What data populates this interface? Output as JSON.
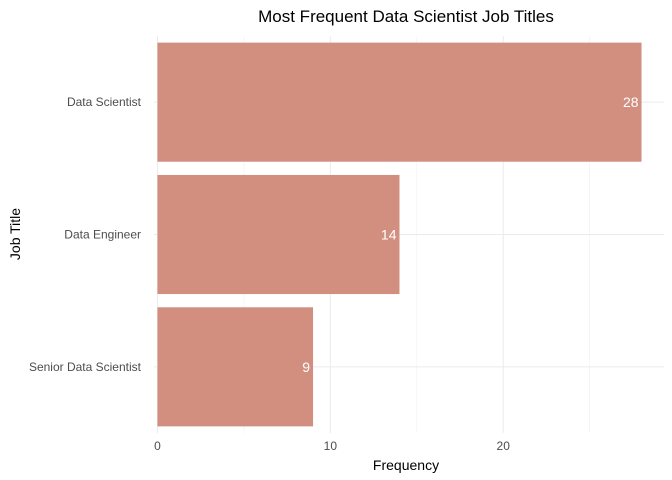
{
  "chart_data": {
    "type": "bar",
    "orientation": "horizontal",
    "title": "Most Frequent Data Scientist Job Titles",
    "xlabel": "Frequency",
    "ylabel": "Job Title",
    "categories": [
      "Data Scientist",
      "Data Engineer",
      "Senior Data Scientist"
    ],
    "values": [
      28,
      14,
      9
    ],
    "data_labels": [
      "28",
      "14",
      "9"
    ],
    "x_ticks": [
      0,
      10,
      20
    ],
    "x_tick_labels": [
      "0",
      "10",
      "20"
    ],
    "xlim": [
      -0.2,
      29.3
    ],
    "grid": true,
    "legend": "none",
    "colors": {
      "bar": "#d28f80",
      "label": "#ffffff",
      "grid": "#ebebeb"
    }
  }
}
